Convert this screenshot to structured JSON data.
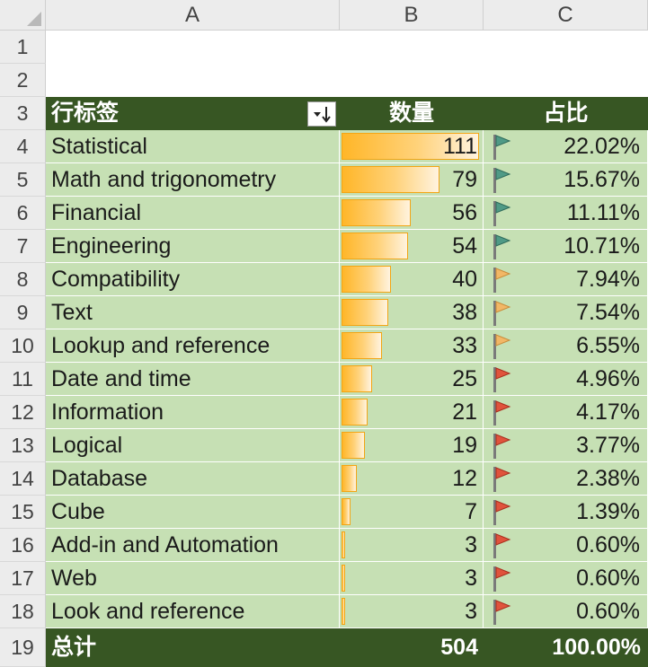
{
  "columns": [
    "A",
    "B",
    "C"
  ],
  "row_numbers": [
    "1",
    "2",
    "3",
    "4",
    "5",
    "6",
    "7",
    "8",
    "9",
    "10",
    "11",
    "12",
    "13",
    "14",
    "15",
    "16",
    "17",
    "18",
    "19"
  ],
  "header": {
    "label": "行标签",
    "count": "数量",
    "share": "占比"
  },
  "colors": {
    "header_bg": "#375623",
    "row_bg": "#c6e0b4",
    "bar_orange": "#ffb628",
    "flag_green": "#4f9a86",
    "flag_yellow": "#f2b766",
    "flag_red": "#e0533c"
  },
  "rows": [
    {
      "category": "Statistical",
      "count": 111,
      "count_text": "111",
      "share": "22.02%",
      "flag": "green"
    },
    {
      "category": "Math and trigonometry",
      "count": 79,
      "count_text": "79",
      "share": "15.67%",
      "flag": "green"
    },
    {
      "category": "Financial",
      "count": 56,
      "count_text": "56",
      "share": "11.11%",
      "flag": "green"
    },
    {
      "category": "Engineering",
      "count": 54,
      "count_text": "54",
      "share": "10.71%",
      "flag": "green"
    },
    {
      "category": "Compatibility",
      "count": 40,
      "count_text": "40",
      "share": "7.94%",
      "flag": "yellow"
    },
    {
      "category": "Text",
      "count": 38,
      "count_text": "38",
      "share": "7.54%",
      "flag": "yellow"
    },
    {
      "category": "Lookup and reference",
      "count": 33,
      "count_text": "33",
      "share": "6.55%",
      "flag": "yellow"
    },
    {
      "category": "Date and time",
      "count": 25,
      "count_text": "25",
      "share": "4.96%",
      "flag": "red"
    },
    {
      "category": "Information",
      "count": 21,
      "count_text": "21",
      "share": "4.17%",
      "flag": "red"
    },
    {
      "category": "Logical",
      "count": 19,
      "count_text": "19",
      "share": "3.77%",
      "flag": "red"
    },
    {
      "category": "Database",
      "count": 12,
      "count_text": "12",
      "share": "2.38%",
      "flag": "red"
    },
    {
      "category": "Cube",
      "count": 7,
      "count_text": "7",
      "share": "1.39%",
      "flag": "red"
    },
    {
      "category": "Add-in and Automation",
      "count": 3,
      "count_text": "3",
      "share": "0.60%",
      "flag": "red"
    },
    {
      "category": "Web",
      "count": 3,
      "count_text": "3",
      "share": "0.60%",
      "flag": "red"
    },
    {
      "category": "Look and reference",
      "count": 3,
      "count_text": "3",
      "share": "0.60%",
      "flag": "red"
    }
  ],
  "total": {
    "label": "总计",
    "count": "504",
    "share": "100.00%"
  }
}
